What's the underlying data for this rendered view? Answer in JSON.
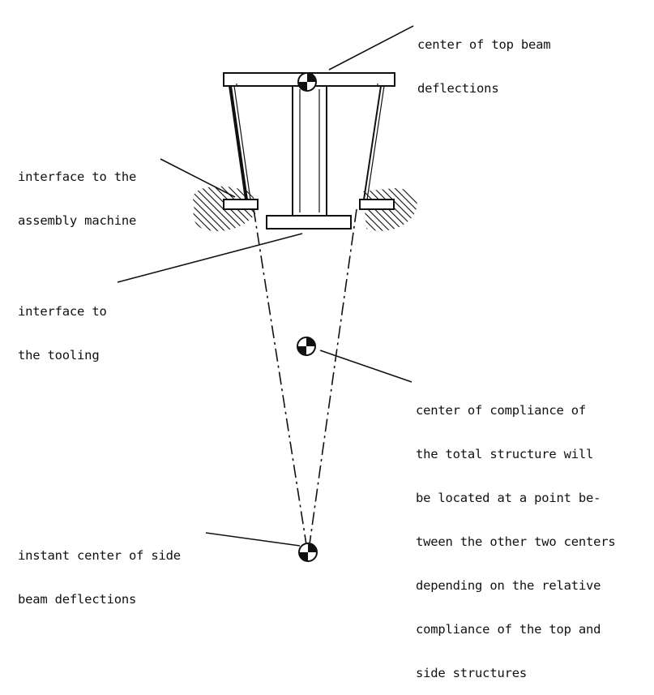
{
  "labels": {
    "top_beam": [
      "center of top beam",
      "deflections"
    ],
    "assembly_interface": [
      "interface to the",
      "assembly machine"
    ],
    "tooling_interface": [
      "interface to",
      "the tooling"
    ],
    "compliance_center": [
      "center of compliance of",
      "the total structure will",
      "be located at a point be-",
      "tween the other two centers",
      "depending on the relative",
      "compliance of the top and",
      "side structures"
    ],
    "side_beam": [
      "instant center of side",
      "beam deflections"
    ]
  },
  "colors": {
    "ink": "#111111",
    "paper": "#ffffff"
  },
  "symbols": [
    "center-of-mass-symbol"
  ]
}
